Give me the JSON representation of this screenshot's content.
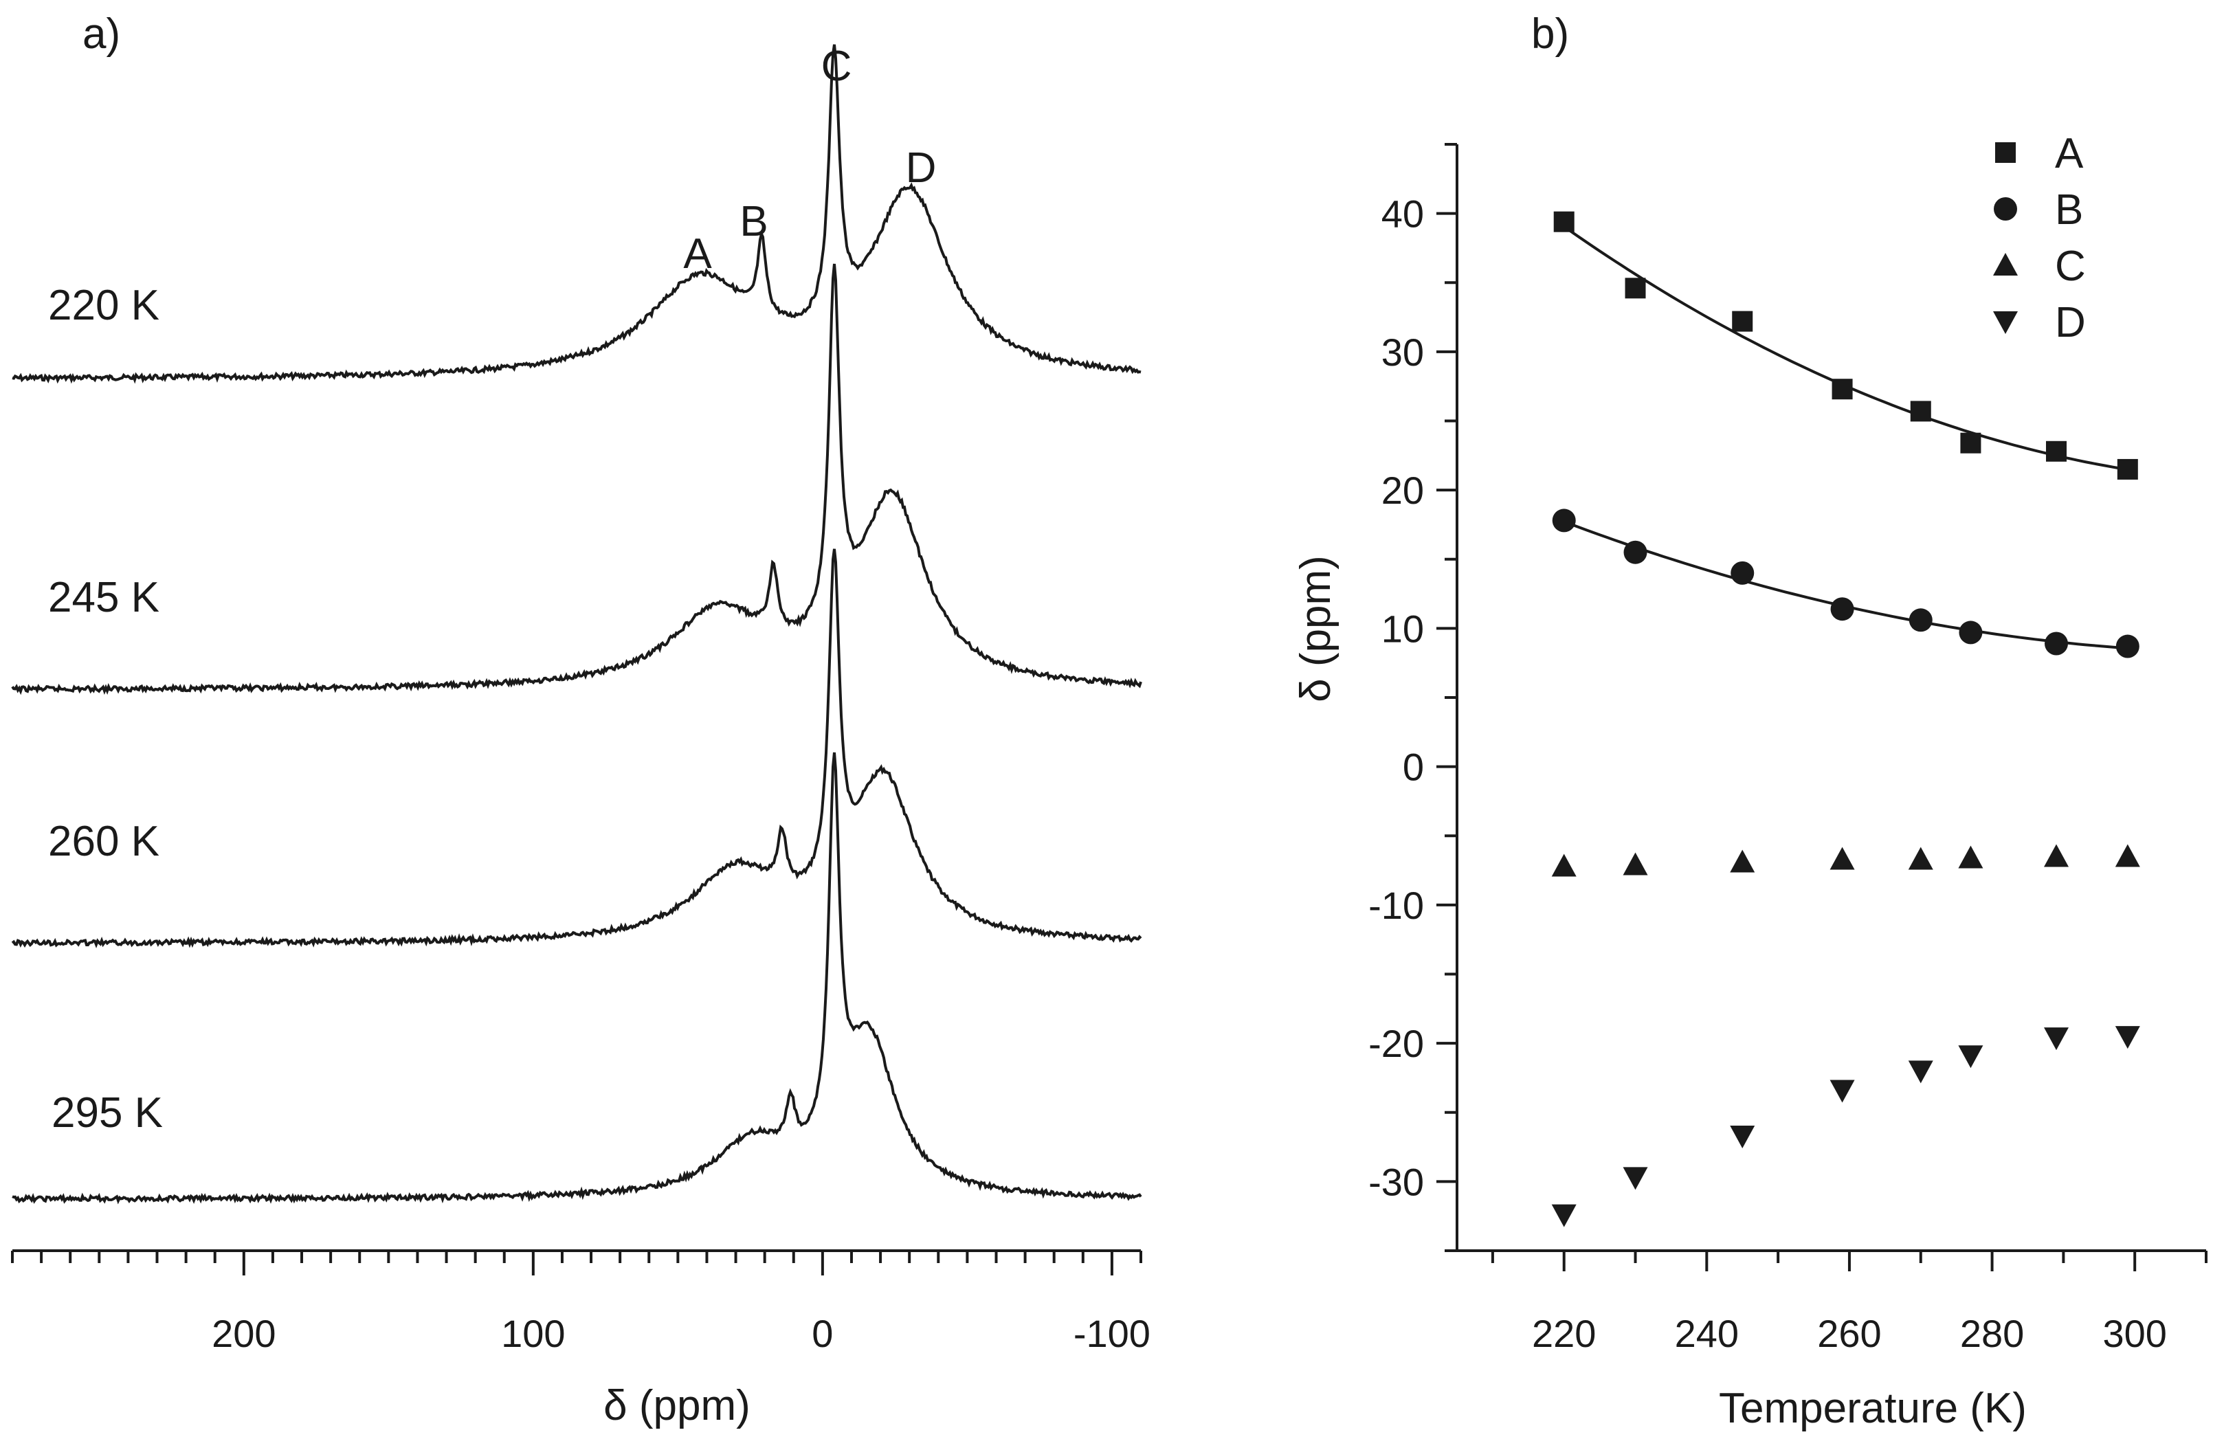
{
  "chart_data": [
    {
      "panel_label": "a)",
      "type": "line",
      "xlabel": "δ (ppm)",
      "x_ticks": [
        "200",
        "100",
        "0",
        "-100"
      ],
      "xlim": [
        280,
        -110
      ],
      "x_reversed": true,
      "series": [
        {
          "name": "220 K",
          "baseline_offset": 0,
          "peaks": [
            {
              "label": "A",
              "center": 42,
              "width": 22,
              "height": 0.36
            },
            {
              "label": "B",
              "center": 21,
              "width": 1.8,
              "height": 0.28
            },
            {
              "label": "C",
              "center": -4,
              "width": 2.2,
              "height": 1.0
            },
            {
              "label": "D",
              "center": -30,
              "width": 16,
              "height": 0.68
            }
          ]
        },
        {
          "name": "245 K",
          "baseline_offset": 1,
          "peaks": [
            {
              "label": "A",
              "center": 36,
              "width": 20,
              "height": 0.28
            },
            {
              "label": "B",
              "center": 17,
              "width": 1.8,
              "height": 0.24
            },
            {
              "label": "C",
              "center": -4,
              "width": 2.2,
              "height": 1.3
            },
            {
              "label": "D",
              "center": -24,
              "width": 14,
              "height": 0.7
            }
          ]
        },
        {
          "name": "260 K",
          "baseline_offset": 2,
          "peaks": [
            {
              "label": "A",
              "center": 30,
              "width": 18,
              "height": 0.26
            },
            {
              "label": "B",
              "center": 14,
              "width": 1.8,
              "height": 0.2
            },
            {
              "label": "C",
              "center": -4,
              "width": 2.2,
              "height": 1.2
            },
            {
              "label": "D",
              "center": -21,
              "width": 13,
              "height": 0.6
            }
          ]
        },
        {
          "name": "295 K",
          "baseline_offset": 3,
          "peaks": [
            {
              "label": "A",
              "center": 24,
              "width": 16,
              "height": 0.2
            },
            {
              "label": "B",
              "center": 11,
              "width": 1.8,
              "height": 0.17
            },
            {
              "label": "C",
              "center": -4,
              "width": 2.2,
              "height": 1.35
            },
            {
              "label": "D",
              "center": -16,
              "width": 11,
              "height": 0.58
            }
          ]
        }
      ],
      "peak_labels": [
        "A",
        "B",
        "C",
        "D"
      ]
    },
    {
      "panel_label": "b)",
      "type": "scatter",
      "xlabel": "Temperature (K)",
      "ylabel": "δ (ppm)",
      "xlim": [
        205,
        310
      ],
      "ylim": [
        -35,
        45
      ],
      "x_ticks": [
        220,
        240,
        260,
        280,
        300
      ],
      "y_ticks": [
        40,
        30,
        20,
        10,
        0,
        -10,
        -20,
        -30
      ],
      "legend_position": "top-right",
      "series": [
        {
          "name": "A",
          "marker": "square",
          "fit": true,
          "x": [
            220,
            230,
            245,
            259,
            270,
            277,
            289,
            299
          ],
          "y": [
            39.4,
            34.6,
            32.2,
            27.3,
            25.7,
            23.4,
            22.8,
            21.5
          ]
        },
        {
          "name": "B",
          "marker": "circle",
          "fit": true,
          "x": [
            220,
            230,
            245,
            259,
            270,
            277,
            289,
            299
          ],
          "y": [
            17.8,
            15.5,
            14.0,
            11.4,
            10.6,
            9.7,
            8.9,
            8.7
          ]
        },
        {
          "name": "C",
          "marker": "triangle-up",
          "fit": false,
          "x": [
            220,
            230,
            245,
            259,
            270,
            277,
            289,
            299
          ],
          "y": [
            -7.2,
            -7.1,
            -6.9,
            -6.7,
            -6.7,
            -6.6,
            -6.5,
            -6.5
          ]
        },
        {
          "name": "D",
          "marker": "triangle-down",
          "fit": false,
          "x": [
            220,
            230,
            245,
            259,
            270,
            277,
            289,
            299
          ],
          "y": [
            -32.4,
            -29.7,
            -26.7,
            -23.4,
            -22.0,
            -20.9,
            -19.6,
            -19.5
          ]
        }
      ]
    }
  ]
}
